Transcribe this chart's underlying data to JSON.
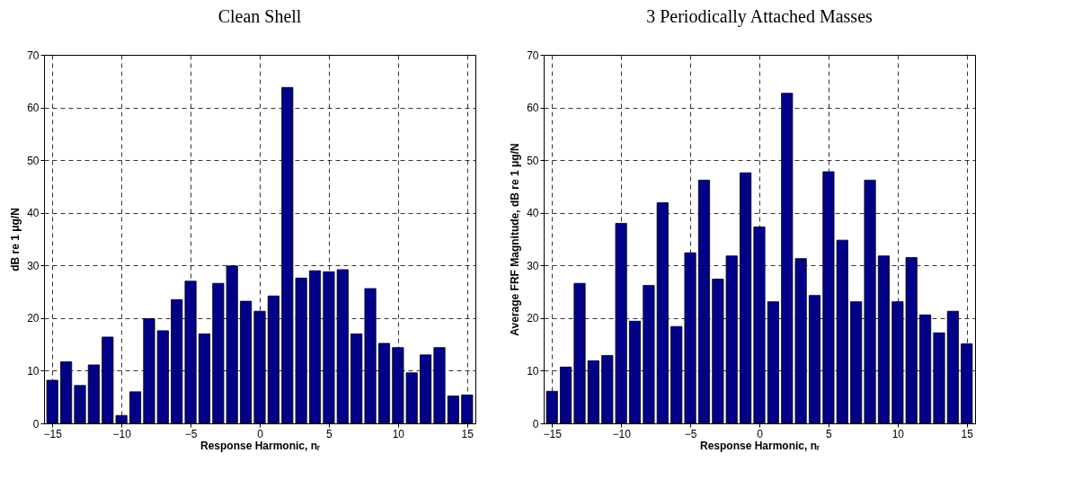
{
  "chart_data": [
    {
      "type": "bar",
      "title": "Clean Shell",
      "xlabel": "Response Harmonic, nᵣ",
      "ylabel": "dB re 1 μg/N",
      "x": [
        -15,
        -14,
        -13,
        -12,
        -11,
        -10,
        -9,
        -8,
        -7,
        -6,
        -5,
        -4,
        -3,
        -2,
        -1,
        0,
        1,
        2,
        3,
        4,
        5,
        6,
        7,
        8,
        9,
        10,
        11,
        12,
        13,
        14,
        15
      ],
      "values": [
        8.2,
        11.7,
        7.2,
        11.1,
        16.4,
        1.5,
        6.0,
        19.9,
        17.6,
        23.5,
        27.0,
        17.0,
        26.6,
        29.9,
        23.2,
        21.3,
        24.2,
        63.8,
        27.6,
        29.0,
        28.8,
        29.2,
        17.0,
        25.6,
        15.2,
        14.4,
        9.6,
        13.0,
        14.4,
        5.2,
        5.4
      ],
      "color": "#000088",
      "xlim": [
        -15.6,
        15.6
      ],
      "ylim": [
        0,
        70
      ],
      "xticks": [
        -15,
        -10,
        -5,
        0,
        5,
        10,
        15
      ],
      "yticks": [
        0,
        10,
        20,
        30,
        40,
        50,
        60,
        70
      ],
      "grid": true
    },
    {
      "type": "bar",
      "title": "3 Periodically Attached Masses",
      "xlabel": "Response Harmonic, nᵣ",
      "ylabel": "Average FRF Magnitude, dB re 1 μg/N",
      "x": [
        -15,
        -14,
        -13,
        -12,
        -11,
        -10,
        -9,
        -8,
        -7,
        -6,
        -5,
        -4,
        -3,
        -2,
        -1,
        0,
        1,
        2,
        3,
        4,
        5,
        6,
        7,
        8,
        9,
        10,
        11,
        12,
        13,
        14,
        15
      ],
      "values": [
        6.1,
        10.7,
        26.6,
        11.9,
        12.9,
        38.0,
        19.4,
        26.2,
        41.9,
        18.4,
        32.4,
        46.2,
        27.4,
        31.8,
        47.6,
        37.3,
        23.1,
        62.7,
        31.3,
        24.3,
        47.8,
        34.8,
        23.1,
        46.2,
        31.8,
        23.1,
        31.5,
        20.6,
        17.2,
        21.3,
        15.1
      ],
      "color": "#000088",
      "xlim": [
        -15.6,
        15.6
      ],
      "ylim": [
        0,
        70
      ],
      "xticks": [
        -15,
        -10,
        -5,
        0,
        5,
        10,
        15
      ],
      "yticks": [
        0,
        10,
        20,
        30,
        40,
        50,
        60,
        70
      ],
      "grid": true
    }
  ]
}
